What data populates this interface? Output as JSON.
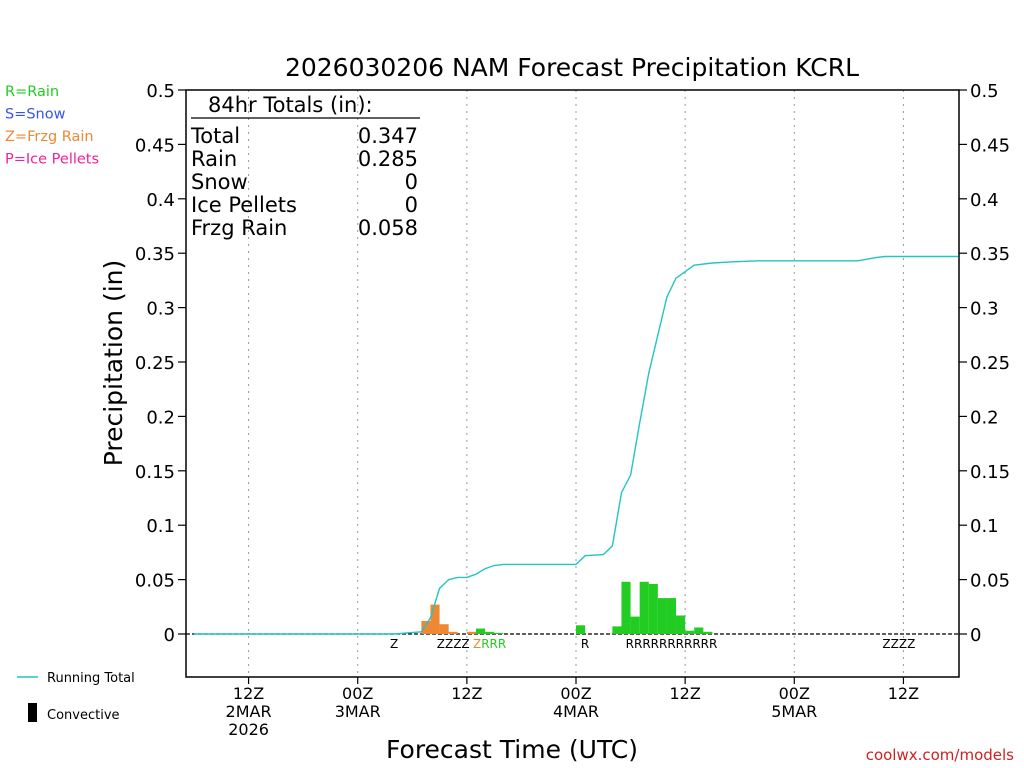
{
  "chart_data": {
    "type": "bar+line",
    "title": "2026030206 NAM Forecast Precipitation KCRL",
    "ylabel": "Precipitation (in)",
    "xlabel": "Forecast Time (UTC)",
    "ylim": [
      -0.04,
      0.5
    ],
    "xlim_hours": [
      0,
      84
    ],
    "yticks": [
      "0.5",
      "0.45",
      "0.4",
      "0.35",
      "0.3",
      "0.25",
      "0.2",
      "0.15",
      "0.1",
      "0.05",
      "0"
    ],
    "ytick_values": [
      0.5,
      0.45,
      0.4,
      0.35,
      0.3,
      0.25,
      0.2,
      0.15,
      0.1,
      0.05,
      0
    ],
    "xticks": [
      {
        "hour": 6,
        "lines": [
          "12Z",
          "2MAR",
          "2026"
        ]
      },
      {
        "hour": 18,
        "lines": [
          "00Z",
          "3MAR"
        ]
      },
      {
        "hour": 30,
        "lines": [
          "12Z"
        ]
      },
      {
        "hour": 42,
        "lines": [
          "00Z",
          "4MAR"
        ]
      },
      {
        "hour": 54,
        "lines": [
          "12Z"
        ]
      },
      {
        "hour": 66,
        "lines": [
          "00Z",
          "5MAR"
        ]
      },
      {
        "hour": 78,
        "lines": [
          "12Z"
        ]
      }
    ],
    "legend_types": [
      {
        "label": "R=Rain",
        "color": "#22cc22"
      },
      {
        "label": "S=Snow",
        "color": "#3355ee"
      },
      {
        "label": "Z=Frzg Rain",
        "color": "#ee8833"
      },
      {
        "label": "P=Ice Pellets",
        "color": "#ee2299"
      }
    ],
    "legend_lines": [
      {
        "label": "Running Total",
        "color": "#22c4c4"
      },
      {
        "label": "Convective",
        "color": "#000000"
      }
    ],
    "totals": {
      "header": "84hr Totals (in):",
      "rows": [
        {
          "label": "Total",
          "value": "0.347"
        },
        {
          "label": "Rain",
          "value": "0.285"
        },
        {
          "label": "Snow",
          "value": "0"
        },
        {
          "label": "Ice Pellets",
          "value": "0"
        },
        {
          "label": "Frzg Rain",
          "value": "0.058"
        }
      ]
    },
    "bars": [
      {
        "hour": 26,
        "value": 0.012,
        "type": "Z"
      },
      {
        "hour": 27,
        "value": 0.027,
        "type": "Z"
      },
      {
        "hour": 28,
        "value": 0.009,
        "type": "Z"
      },
      {
        "hour": 29,
        "value": 0.002,
        "type": "Z"
      },
      {
        "hour": 31,
        "value": 0.002,
        "type": "Z"
      },
      {
        "hour": 32,
        "value": 0.005,
        "type": "R"
      },
      {
        "hour": 33,
        "value": 0.002,
        "type": "R"
      },
      {
        "hour": 34,
        "value": 0.001,
        "type": "R"
      },
      {
        "hour": 43,
        "value": 0.008,
        "type": "R"
      },
      {
        "hour": 47,
        "value": 0.007,
        "type": "R"
      },
      {
        "hour": 48,
        "value": 0.048,
        "type": "R"
      },
      {
        "hour": 49,
        "value": 0.016,
        "type": "R"
      },
      {
        "hour": 50,
        "value": 0.048,
        "type": "R"
      },
      {
        "hour": 51,
        "value": 0.046,
        "type": "R"
      },
      {
        "hour": 52,
        "value": 0.033,
        "type": "R"
      },
      {
        "hour": 53,
        "value": 0.033,
        "type": "R"
      },
      {
        "hour": 54,
        "value": 0.017,
        "type": "R"
      },
      {
        "hour": 55,
        "value": 0.003,
        "type": "R"
      },
      {
        "hour": 56,
        "value": 0.006,
        "type": "R"
      },
      {
        "hour": 57,
        "value": 0.002,
        "type": "R"
      }
    ],
    "type_markers": [
      {
        "hour": 22,
        "text": "Z",
        "color": "#ee8833"
      },
      {
        "hour": 28.5,
        "text": "ZZZZ",
        "color": "#ee8833"
      },
      {
        "hour": 32.5,
        "text": "ZRRR",
        "color": "#ee8833",
        "tail_color": "#22cc22"
      },
      {
        "hour": 43,
        "text": "R",
        "color": "#22cc22"
      },
      {
        "hour": 52.5,
        "text": "RRRRRRRRRRR",
        "color": "#22cc22"
      },
      {
        "hour": 77.5,
        "text": "ZZZZ",
        "color": "#ee8833"
      }
    ],
    "running_total": {
      "x": [
        0,
        22,
        25,
        26,
        27,
        28,
        29,
        30,
        31,
        32,
        33,
        34,
        35,
        42,
        43,
        45,
        46,
        47,
        48,
        49,
        50,
        51,
        52,
        53,
        54,
        55,
        57,
        59,
        62,
        65,
        73,
        75,
        76,
        84
      ],
      "y": [
        0,
        0,
        0.002,
        0.015,
        0.042,
        0.05,
        0.052,
        0.052,
        0.055,
        0.06,
        0.063,
        0.064,
        0.064,
        0.064,
        0.072,
        0.073,
        0.081,
        0.13,
        0.146,
        0.194,
        0.24,
        0.275,
        0.31,
        0.327,
        0.333,
        0.339,
        0.341,
        0.342,
        0.343,
        0.343,
        0.343,
        0.346,
        0.347,
        0.347
      ]
    },
    "colors": {
      "rain": "#22cc22",
      "frzg_rain": "#ee8833",
      "running_total": "#22c4c4",
      "axes": "#000000"
    },
    "watermark": "coolwx.com/models"
  }
}
